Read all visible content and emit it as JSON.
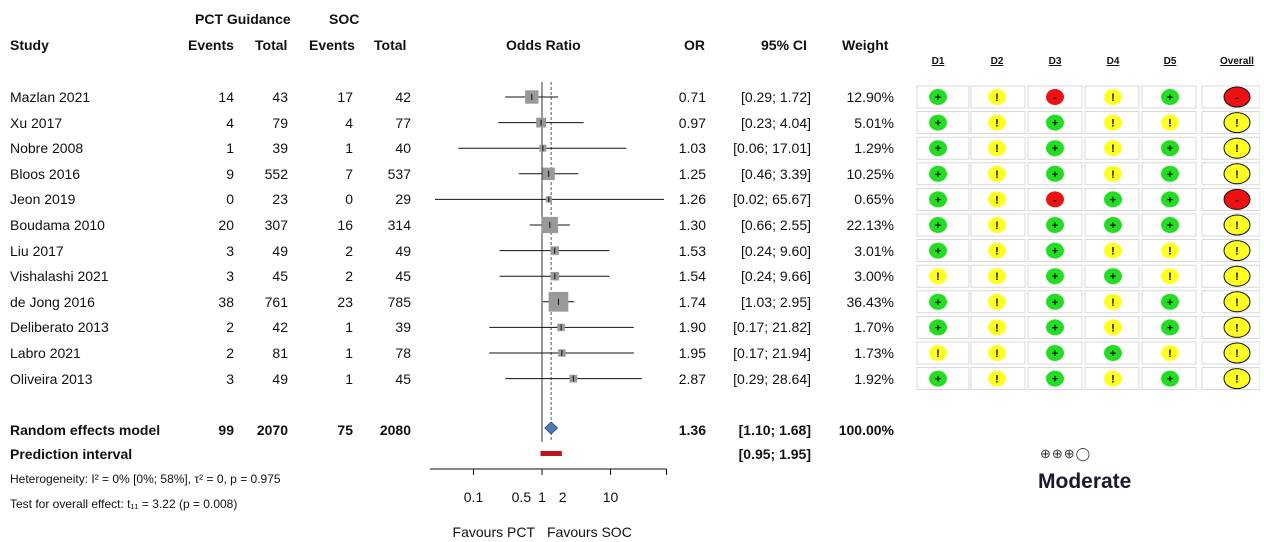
{
  "header": {
    "group1": "PCT Guidance",
    "group2": "SOC",
    "study": "Study",
    "events1": "Events",
    "total1": "Total",
    "events2": "Events",
    "total2": "Total",
    "odds_ratio": "Odds Ratio",
    "or": "OR",
    "ci": "95% CI",
    "weight": "Weight"
  },
  "rob_headers": [
    "D1",
    "D2",
    "D3",
    "D4",
    "D5",
    "Overall"
  ],
  "studies": [
    {
      "name": "Mazlan 2021",
      "e1": "14",
      "t1": "43",
      "e2": "17",
      "t2": "42",
      "or": "0.71",
      "ci": "[0.29; 1.72]",
      "weight": "12.90%",
      "or_v": 0.71,
      "lo": 0.29,
      "hi": 1.72,
      "w": 12.9,
      "rob": [
        "+",
        "!",
        "-",
        "!",
        "+",
        "-"
      ]
    },
    {
      "name": "Xu 2017",
      "e1": "4",
      "t1": "79",
      "e2": "4",
      "t2": "77",
      "or": "0.97",
      "ci": "[0.23; 4.04]",
      "weight": "5.01%",
      "or_v": 0.97,
      "lo": 0.23,
      "hi": 4.04,
      "w": 5.01,
      "rob": [
        "+",
        "!",
        "+",
        "!",
        "!",
        "!"
      ]
    },
    {
      "name": "Nobre 2008",
      "e1": "1",
      "t1": "39",
      "e2": "1",
      "t2": "40",
      "or": "1.03",
      "ci": "[0.06; 17.01]",
      "weight": "1.29%",
      "or_v": 1.03,
      "lo": 0.06,
      "hi": 17.01,
      "w": 1.29,
      "rob": [
        "+",
        "!",
        "+",
        "!",
        "+",
        "!"
      ]
    },
    {
      "name": "Bloos 2016",
      "e1": "9",
      "t1": "552",
      "e2": "7",
      "t2": "537",
      "or": "1.25",
      "ci": "[0.46; 3.39]",
      "weight": "10.25%",
      "or_v": 1.25,
      "lo": 0.46,
      "hi": 3.39,
      "w": 10.25,
      "rob": [
        "+",
        "!",
        "+",
        "!",
        "+",
        "!"
      ]
    },
    {
      "name": "Jeon 2019",
      "e1": "0",
      "t1": "23",
      "e2": "0",
      "t2": "29",
      "or": "1.26",
      "ci": "[0.02; 65.67]",
      "weight": "0.65%",
      "or_v": 1.26,
      "lo": 0.02,
      "hi": 65.67,
      "w": 0.65,
      "rob": [
        "+",
        "!",
        "-",
        "+",
        "+",
        "-"
      ]
    },
    {
      "name": "Boudama 2010",
      "e1": "20",
      "t1": "307",
      "e2": "16",
      "t2": "314",
      "or": "1.30",
      "ci": "[0.66; 2.55]",
      "weight": "22.13%",
      "or_v": 1.3,
      "lo": 0.66,
      "hi": 2.55,
      "w": 22.13,
      "rob": [
        "+",
        "!",
        "+",
        "+",
        "+",
        "!"
      ]
    },
    {
      "name": "Liu 2017",
      "e1": "3",
      "t1": "49",
      "e2": "2",
      "t2": "49",
      "or": "1.53",
      "ci": "[0.24; 9.60]",
      "weight": "3.01%",
      "or_v": 1.53,
      "lo": 0.24,
      "hi": 9.6,
      "w": 3.01,
      "rob": [
        "+",
        "!",
        "+",
        "!",
        "!",
        "!"
      ]
    },
    {
      "name": "Vishalashi 2021",
      "e1": "3",
      "t1": "45",
      "e2": "2",
      "t2": "45",
      "or": "1.54",
      "ci": "[0.24; 9.66]",
      "weight": "3.00%",
      "or_v": 1.54,
      "lo": 0.24,
      "hi": 9.66,
      "w": 3.0,
      "rob": [
        "!",
        "!",
        "+",
        "+",
        "!",
        "!"
      ]
    },
    {
      "name": "de Jong 2016",
      "e1": "38",
      "t1": "761",
      "e2": "23",
      "t2": "785",
      "or": "1.74",
      "ci": "[1.03; 2.95]",
      "weight": "36.43%",
      "or_v": 1.74,
      "lo": 1.03,
      "hi": 2.95,
      "w": 36.43,
      "rob": [
        "+",
        "!",
        "+",
        "!",
        "+",
        "!"
      ]
    },
    {
      "name": "Deliberato 2013",
      "e1": "2",
      "t1": "42",
      "e2": "1",
      "t2": "39",
      "or": "1.90",
      "ci": "[0.17; 21.82]",
      "weight": "1.70%",
      "or_v": 1.9,
      "lo": 0.17,
      "hi": 21.82,
      "w": 1.7,
      "rob": [
        "+",
        "!",
        "+",
        "!",
        "+",
        "!"
      ]
    },
    {
      "name": "Labro 2021",
      "e1": "2",
      "t1": "81",
      "e2": "1",
      "t2": "78",
      "or": "1.95",
      "ci": "[0.17; 21.94]",
      "weight": "1.73%",
      "or_v": 1.95,
      "lo": 0.17,
      "hi": 21.94,
      "w": 1.73,
      "rob": [
        "!",
        "!",
        "+",
        "+",
        "!",
        "!"
      ]
    },
    {
      "name": "Oliveira 2013",
      "e1": "3",
      "t1": "49",
      "e2": "1",
      "t2": "45",
      "or": "2.87",
      "ci": "[0.29; 28.64]",
      "weight": "1.92%",
      "or_v": 2.87,
      "lo": 0.29,
      "hi": 28.64,
      "w": 1.92,
      "rob": [
        "+",
        "!",
        "+",
        "!",
        "+",
        "!"
      ]
    }
  ],
  "summary": {
    "name": "Random effects model",
    "e1": "99",
    "t1": "2070",
    "e2": "75",
    "t2": "2080",
    "or": "1.36",
    "ci": "[1.10; 1.68]",
    "weight": "100.00%",
    "or_v": 1.36,
    "lo": 1.1,
    "hi": 1.68
  },
  "prediction": {
    "name": "Prediction interval",
    "ci": "[0.95; 1.95]",
    "lo": 0.95,
    "hi": 1.95
  },
  "heterogeneity": "Heterogeneity: I² = 0% [0%; 58%], τ² = 0, p = 0.975",
  "overall_effect": "Test for overall effect: t₁₁ = 3.22 (p = 0.008)",
  "axis": {
    "ticks": [
      0.1,
      0.5,
      1,
      2,
      10
    ],
    "tick_labels": [
      "0.1",
      "0.5",
      "1",
      "2",
      "10"
    ],
    "favours_left": "Favours PCT",
    "favours_right": "Favours SOC"
  },
  "grade": {
    "symbols": "⊕⊕⊕◯",
    "label": "Moderate"
  },
  "colors": {
    "low": "#22dd22",
    "some": "#ffff22",
    "high": "#ee1111",
    "box": "#999999",
    "diamond": "#4a7fb5",
    "pi": "#c0141b"
  },
  "chart_data": {
    "type": "forest",
    "x_scale": "log",
    "xlim": [
      0.02,
      65.67
    ],
    "ref_line": 1,
    "pooled_line": 1.36,
    "studies": [
      "Mazlan 2021",
      "Xu 2017",
      "Nobre 2008",
      "Bloos 2016",
      "Jeon 2019",
      "Boudama 2010",
      "Liu 2017",
      "Vishalashi 2021",
      "de Jong 2016",
      "Deliberato 2013",
      "Labro 2021",
      "Oliveira 2013"
    ],
    "or": [
      0.71,
      0.97,
      1.03,
      1.25,
      1.26,
      1.3,
      1.53,
      1.54,
      1.74,
      1.9,
      1.95,
      2.87
    ],
    "ci_low": [
      0.29,
      0.23,
      0.06,
      0.46,
      0.02,
      0.66,
      0.24,
      0.24,
      1.03,
      0.17,
      0.17,
      0.29
    ],
    "ci_high": [
      1.72,
      4.04,
      17.01,
      3.39,
      65.67,
      2.55,
      9.6,
      9.66,
      2.95,
      21.82,
      21.94,
      28.64
    ],
    "weight": [
      12.9,
      5.01,
      1.29,
      10.25,
      0.65,
      22.13,
      3.01,
      3.0,
      36.43,
      1.7,
      1.73,
      1.92
    ],
    "pooled": {
      "or": 1.36,
      "ci": [
        1.1,
        1.68
      ]
    },
    "prediction_interval": [
      0.95,
      1.95
    ]
  }
}
